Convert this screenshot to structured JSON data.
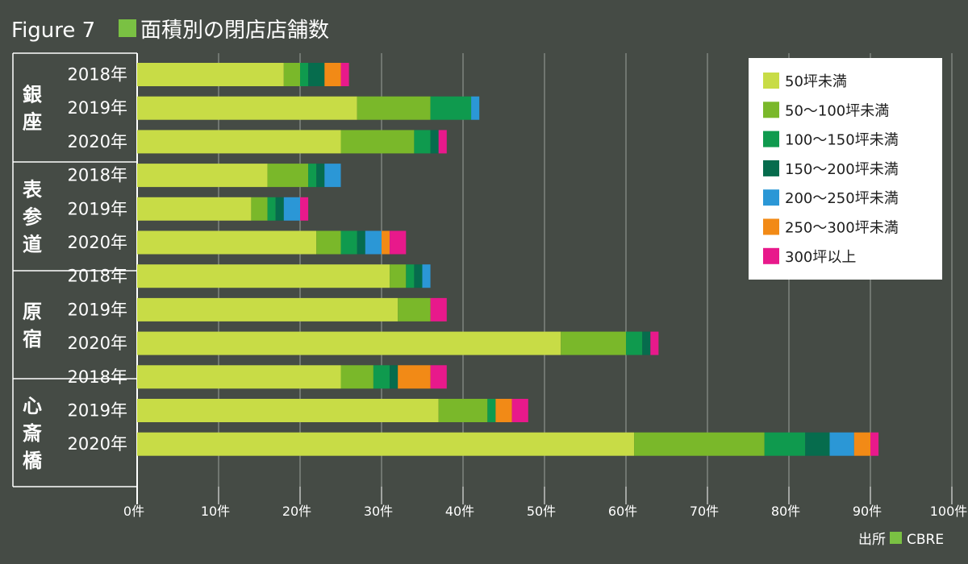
{
  "title": {
    "prefix": "Figure 7",
    "text": "面積別の閉店店舗数",
    "marker_color": "#7ac143"
  },
  "source": {
    "label": "出所",
    "name": "CBRE",
    "marker_color": "#7ac143"
  },
  "chart_data": {
    "type": "bar",
    "orientation": "horizontal",
    "stacked": true,
    "title": "面積別の閉店店舗数",
    "xlabel": "",
    "ylabel": "",
    "xlim": [
      0,
      100
    ],
    "grid": true,
    "legend_position": "top-right",
    "x_ticks": [
      "0件",
      "10件",
      "20件",
      "30件",
      "40件",
      "50件",
      "60件",
      "70件",
      "80件",
      "90件",
      "100件"
    ],
    "groups": [
      {
        "name": "銀座",
        "years": [
          "2018年",
          "2019年",
          "2020年"
        ]
      },
      {
        "name": "表参道",
        "years": [
          "2018年",
          "2019年",
          "2020年"
        ]
      },
      {
        "name": "原宿",
        "years": [
          "2018年",
          "2019年",
          "2020年"
        ]
      },
      {
        "name": "心斎橋",
        "years": [
          "2018年",
          "2019年",
          "2020年"
        ]
      }
    ],
    "categories": [
      "銀座 2018年",
      "銀座 2019年",
      "銀座 2020年",
      "表参道 2018年",
      "表参道 2019年",
      "表参道 2020年",
      "原宿 2018年",
      "原宿 2019年",
      "原宿 2020年",
      "心斎橋 2018年",
      "心斎橋 2019年",
      "心斎橋 2020年"
    ],
    "series": [
      {
        "name": "50坪未満",
        "color": "#c8dc46",
        "values": [
          18,
          27,
          25,
          16,
          14,
          22,
          31,
          32,
          52,
          25,
          37,
          61
        ]
      },
      {
        "name": "50～100坪未満",
        "color": "#7ab82a",
        "values": [
          2,
          9,
          9,
          5,
          2,
          3,
          2,
          4,
          8,
          4,
          6,
          16
        ]
      },
      {
        "name": "100～150坪未満",
        "color": "#0f9a4e",
        "values": [
          1,
          5,
          2,
          1,
          1,
          2,
          1,
          0,
          2,
          2,
          1,
          5
        ]
      },
      {
        "name": "150～200坪未満",
        "color": "#066c4d",
        "values": [
          2,
          0,
          1,
          1,
          1,
          1,
          1,
          0,
          1,
          1,
          0,
          3
        ]
      },
      {
        "name": "200～250坪未満",
        "color": "#2b97d6",
        "values": [
          0,
          1,
          0,
          2,
          2,
          2,
          1,
          0,
          0,
          0,
          0,
          3
        ]
      },
      {
        "name": "250～300坪未満",
        "color": "#f28a16",
        "values": [
          2,
          0,
          0,
          0,
          0,
          1,
          0,
          0,
          0,
          4,
          2,
          2
        ]
      },
      {
        "name": "300坪以上",
        "color": "#e8198b",
        "values": [
          1,
          0,
          1,
          0,
          1,
          2,
          0,
          2,
          1,
          2,
          2,
          1
        ]
      }
    ]
  }
}
